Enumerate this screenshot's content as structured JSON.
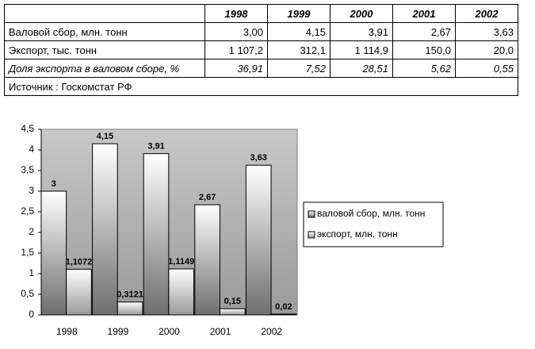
{
  "table": {
    "columns": [
      "1998",
      "1999",
      "2000",
      "2001",
      "2002"
    ],
    "rows": [
      {
        "label": "Валовой сбор, млн. тонн",
        "cells": [
          "3,00",
          "4,15",
          "3,91",
          "2,67",
          "3,63"
        ]
      },
      {
        "label": "Экспорт, тыс. тонн",
        "cells": [
          "1 107,2",
          "312,1",
          "1 114,9",
          "150,0",
          "20,0"
        ]
      },
      {
        "label": "Доля экспорта в валовом сборе, %",
        "cells": [
          "36,91",
          "7,52",
          "28,51",
          "5,62",
          "0,55"
        ]
      }
    ],
    "source": "Источник : Госкомстат РФ"
  },
  "chart_data": {
    "type": "bar",
    "categories": [
      "1998",
      "1999",
      "2000",
      "2001",
      "2002"
    ],
    "series": [
      {
        "name": "валовой сбор, млн. тонн",
        "color": "#6e6e6e",
        "values": [
          3,
          4.15,
          3.91,
          2.67,
          3.63
        ],
        "value_labels": [
          "3",
          "4,15",
          "3,91",
          "2,67",
          "3,63"
        ]
      },
      {
        "name": "экспорт, млн. тонн",
        "color": "#9a9a9a",
        "values": [
          1.1072,
          0.3121,
          1.1149,
          0.15,
          0.02
        ],
        "value_labels": [
          "1,1072",
          "0,3121",
          "1,1149",
          "0,15",
          "0,02"
        ]
      }
    ],
    "ylim": [
      0,
      4.5
    ],
    "yticks": [
      0,
      {
        "value": 0.5,
        "label": "0,5"
      },
      1,
      {
        "value": 1.5,
        "label": "1,5"
      },
      2,
      {
        "value": 2.5,
        "label": "2,5"
      },
      3,
      {
        "value": 3.5,
        "label": "3,5"
      },
      4,
      {
        "value": 4.5,
        "label": "4,5"
      }
    ],
    "legend": "right"
  }
}
